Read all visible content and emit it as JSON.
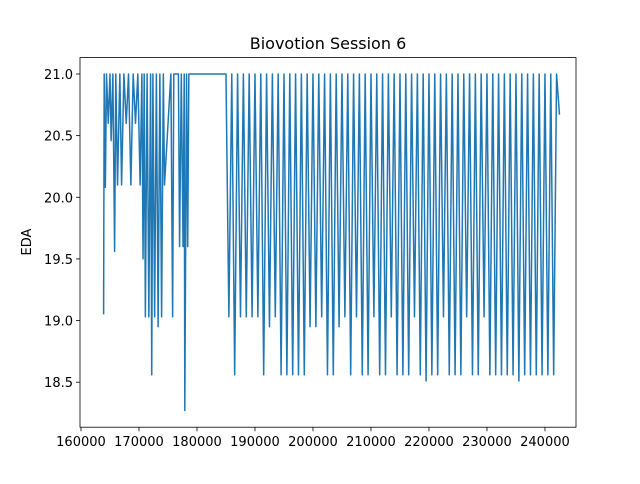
{
  "chart_data": {
    "type": "line",
    "title": "Biovotion Session 6",
    "y_label": "EDA",
    "color": "#1f77b4",
    "x": [
      163900,
      164000,
      164200,
      164400,
      164700,
      165000,
      165200,
      165500,
      165800,
      166000,
      166300,
      166700,
      167000,
      167400,
      167800,
      168200,
      168600,
      169000,
      169400,
      169800,
      170200,
      170500,
      170700,
      170900,
      171100,
      171400,
      171700,
      172000,
      172200,
      172400,
      172700,
      173000,
      173300,
      173600,
      173900,
      174200,
      174400,
      175500,
      175800,
      176000,
      176800,
      177000,
      177300,
      177600,
      177800,
      177900,
      178200,
      178400,
      178600,
      184800,
      185000,
      185500,
      186000,
      186500,
      187000,
      187500,
      188000,
      188500,
      189000,
      189500,
      190000,
      190500,
      191000,
      191500,
      192000,
      192500,
      193000,
      193500,
      194000,
      194500,
      195000,
      195500,
      196000,
      196500,
      197000,
      197500,
      198000,
      198500,
      199000,
      199500,
      200000,
      200500,
      201000,
      201500,
      202000,
      202500,
      203000,
      203500,
      204000,
      204500,
      205000,
      205500,
      206000,
      206500,
      207000,
      207500,
      208000,
      208500,
      209000,
      209500,
      210000,
      210500,
      211000,
      211500,
      212000,
      212500,
      213000,
      213500,
      214000,
      214500,
      215000,
      215500,
      216000,
      216500,
      217000,
      217500,
      218000,
      218500,
      219000,
      219500,
      220000,
      220500,
      221000,
      221500,
      222000,
      222500,
      223000,
      223500,
      224000,
      224500,
      225000,
      225500,
      226000,
      226500,
      227000,
      227500,
      228000,
      228500,
      229000,
      229500,
      230000,
      230500,
      231000,
      231500,
      232000,
      232500,
      233000,
      233500,
      234000,
      234500,
      235000,
      235500,
      236000,
      236500,
      237000,
      237500,
      238000,
      238500,
      239000,
      239500,
      240000,
      240500,
      241000,
      241500,
      242000,
      242500
    ],
    "values": [
      19.05,
      21.0,
      20.08,
      21.0,
      20.6,
      21.0,
      20.46,
      21.0,
      19.56,
      21.0,
      20.1,
      21.0,
      20.1,
      21.0,
      20.6,
      21.0,
      20.1,
      21.0,
      20.6,
      21.0,
      20.1,
      21.0,
      19.5,
      21.0,
      19.03,
      21.0,
      19.03,
      21.0,
      18.56,
      21.0,
      19.03,
      21.0,
      18.95,
      21.0,
      19.03,
      21.0,
      20.1,
      21.0,
      19.03,
      21.0,
      21.0,
      19.6,
      21.0,
      19.6,
      21.0,
      18.27,
      21.0,
      19.6,
      21.0,
      21.0,
      21.0,
      19.03,
      21.0,
      18.56,
      21.0,
      19.03,
      21.0,
      19.03,
      21.0,
      19.03,
      21.0,
      19.03,
      21.0,
      18.56,
      21.0,
      18.95,
      21.0,
      19.03,
      21.0,
      18.56,
      21.0,
      18.56,
      21.0,
      18.56,
      21.0,
      18.56,
      21.0,
      18.56,
      21.0,
      18.95,
      21.0,
      18.95,
      21.0,
      19.03,
      21.0,
      18.56,
      21.0,
      18.56,
      21.0,
      18.95,
      21.0,
      19.03,
      21.0,
      18.56,
      21.0,
      19.03,
      21.0,
      18.56,
      21.0,
      18.56,
      21.0,
      19.03,
      21.0,
      18.56,
      21.0,
      18.56,
      21.0,
      19.03,
      21.0,
      18.56,
      21.0,
      18.56,
      21.0,
      18.56,
      21.0,
      19.03,
      21.0,
      18.56,
      21.0,
      18.51,
      21.0,
      18.56,
      21.0,
      18.56,
      21.0,
      19.03,
      21.0,
      18.56,
      21.0,
      18.56,
      21.0,
      18.56,
      21.0,
      19.03,
      21.0,
      18.56,
      21.0,
      18.56,
      21.0,
      19.03,
      21.0,
      18.56,
      21.0,
      18.56,
      21.0,
      18.56,
      21.0,
      18.56,
      21.0,
      18.56,
      21.0,
      18.51,
      21.0,
      18.56,
      21.0,
      18.56,
      21.0,
      18.56,
      21.0,
      18.56,
      21.0,
      18.56,
      21.0,
      18.56,
      21.0,
      20.67
    ],
    "xlim": [
      159830,
      245350
    ],
    "ylim": [
      18.135,
      21.133
    ],
    "xticks": [
      160000,
      170000,
      180000,
      190000,
      200000,
      210000,
      220000,
      230000,
      240000
    ],
    "yticks": [
      18.5,
      {
        "value": 19.0,
        "label": "19.0"
      },
      19.5,
      {
        "value": 20.0,
        "label": "20.0"
      },
      20.5,
      {
        "value": 21.0,
        "label": "21.0"
      }
    ]
  }
}
